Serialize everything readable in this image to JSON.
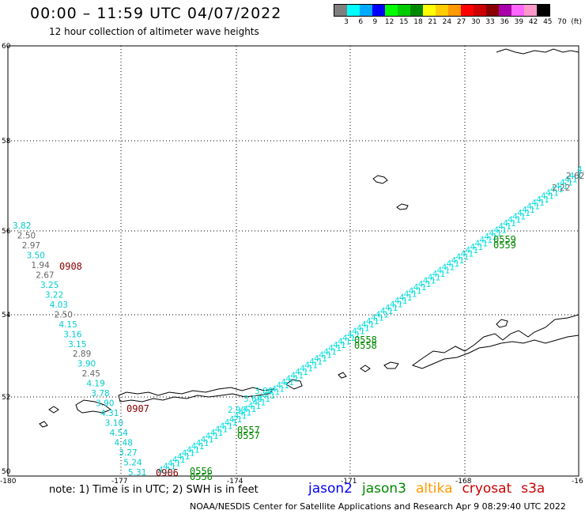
{
  "header": {
    "title": "00:00 – 11:59 UTC 04/07/2022",
    "subtitle": "12 hour collection of altimeter wave heights"
  },
  "legend": {
    "colors": [
      "#7f7f7f",
      "#00ffff",
      "#00aaff",
      "#0000ff",
      "#00ff00",
      "#00cc00",
      "#008800",
      "#ffff00",
      "#ffcc00",
      "#ff9900",
      "#ff0000",
      "#cc0000",
      "#880000",
      "#aa00aa",
      "#ff66ff",
      "#ff99cc",
      "#000000"
    ],
    "labels": [
      "3",
      "6",
      "9",
      "12",
      "15",
      "18",
      "21",
      "24",
      "27",
      "30",
      "33",
      "36",
      "39",
      "42",
      "45",
      "70",
      "(ft)"
    ]
  },
  "axes": {
    "lat_labels": [
      "60",
      "58",
      "56",
      "54",
      "52",
      "50"
    ],
    "lon_labels": [
      "-180",
      "-177",
      "-174",
      "-171",
      "-168",
      "-16"
    ]
  },
  "west_track": [
    {
      "text": "3.82",
      "color": "#00cccc"
    },
    {
      "text": "2.50",
      "color": "#666666"
    },
    {
      "text": "2.97",
      "color": "#666666"
    },
    {
      "text": "3.50",
      "color": "#00cccc"
    },
    {
      "text": "1.94",
      "color": "#666666"
    },
    {
      "text": "2.67",
      "color": "#666666"
    },
    {
      "text": "3.25",
      "color": "#00cccc"
    },
    {
      "text": "3.22",
      "color": "#00cccc"
    },
    {
      "text": "4.03",
      "color": "#00cccc"
    },
    {
      "text": "2.50",
      "color": "#666666"
    },
    {
      "text": "4.15",
      "color": "#00cccc"
    },
    {
      "text": "3.16",
      "color": "#00cccc"
    },
    {
      "text": "3.15",
      "color": "#00cccc"
    },
    {
      "text": "2.89",
      "color": "#666666"
    },
    {
      "text": "3.90",
      "color": "#00cccc"
    },
    {
      "text": "2.45",
      "color": "#666666"
    },
    {
      "text": "4.19",
      "color": "#00cccc"
    },
    {
      "text": "3.78",
      "color": "#00cccc"
    },
    {
      "text": "3.90",
      "color": "#00cccc"
    },
    {
      "text": "4.31",
      "color": "#00cccc"
    },
    {
      "text": "3.10",
      "color": "#00cccc"
    },
    {
      "text": "4.54",
      "color": "#00cccc"
    },
    {
      "text": "4.48",
      "color": "#00cccc"
    },
    {
      "text": "3.27",
      "color": "#00cccc"
    },
    {
      "text": "5.24",
      "color": "#00cccc"
    },
    {
      "text": "5.31",
      "color": "#00cccc"
    }
  ],
  "east_track": {
    "labels": [
      "2.22",
      "2.62",
      "4.2",
      "2.90",
      "3.66",
      "3.80"
    ],
    "repeat_text": "4.1",
    "color": "#00dddd"
  },
  "time_labels": [
    {
      "text": "0908",
      "color": "#880000"
    },
    {
      "text": "0907",
      "color": "#880000"
    },
    {
      "text": "0906",
      "color": "#880000"
    },
    {
      "text": "0556",
      "color": "#008800"
    },
    {
      "text": "0557",
      "color": "#008800"
    },
    {
      "text": "0558",
      "color": "#008800"
    },
    {
      "text": "0559",
      "color": "#008800"
    }
  ],
  "note": "note:  1) Time is in UTC;  2) SWH is in feet",
  "satellites": [
    {
      "name": "jason2",
      "color": "#0000ff"
    },
    {
      "name": "jason3",
      "color": "#008800"
    },
    {
      "name": "altika",
      "color": "#ff9900"
    },
    {
      "name": "cryosat",
      "color": "#cc0000"
    },
    {
      "name": "s3a",
      "color": "#cc0000"
    }
  ],
  "credit": "NOAA/NESDIS Center for Satellite Applications and Research    Apr  9 08:29:40 UTC 2022"
}
